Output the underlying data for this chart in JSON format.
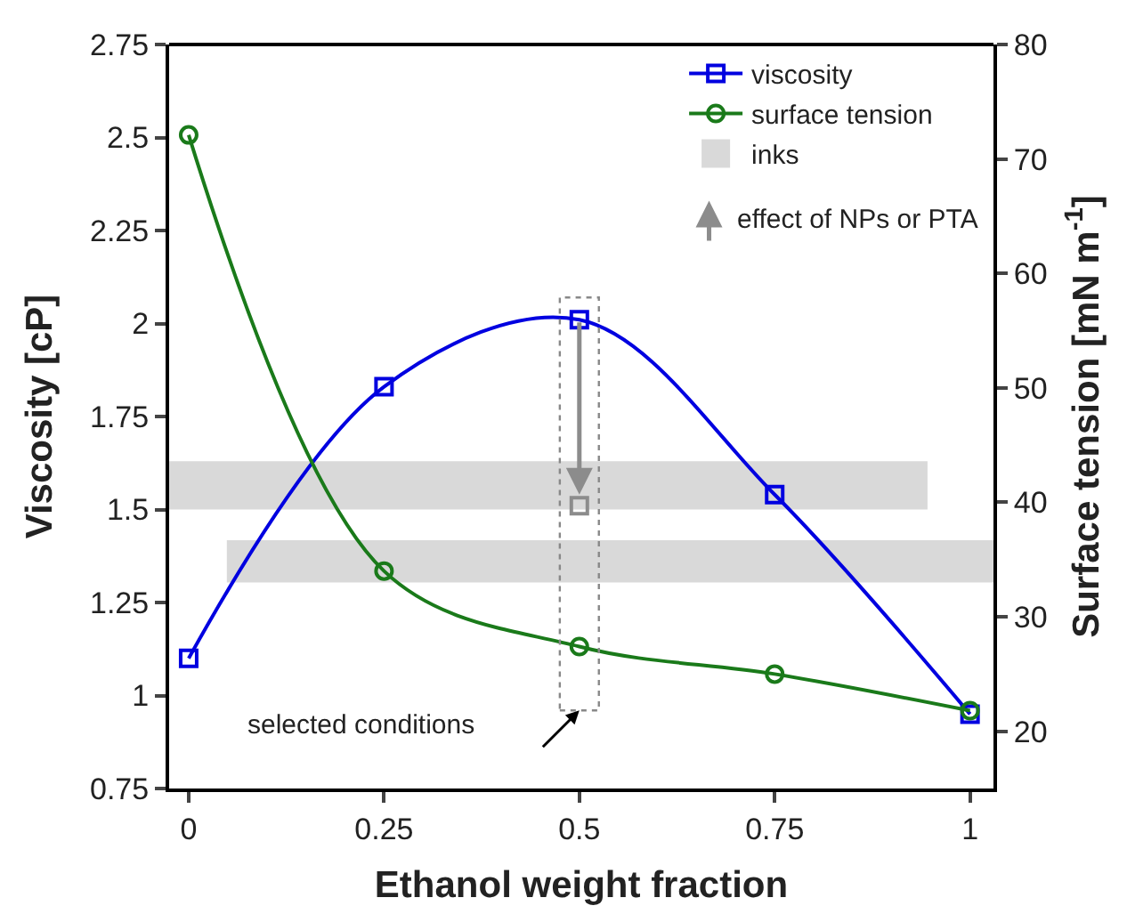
{
  "chart_data": {
    "type": "line",
    "xlabel": "Ethanol weight fraction",
    "ylabel": "Viscosity [cP]",
    "y2label": "Surface tension [mN m$^{-1}$]",
    "x": [
      0,
      0.25,
      0.5,
      0.75,
      1
    ],
    "series": [
      {
        "name": "viscosity",
        "color": "#0000e0",
        "marker": "square",
        "values": [
          1.1,
          1.83,
          2.01,
          1.54,
          0.95
        ]
      },
      {
        "name": "surface tension",
        "color": "#1a7a1a",
        "marker": "circle",
        "axis": "y2",
        "values": [
          72.1,
          34.0,
          27.4,
          25.0,
          21.8
        ]
      },
      {
        "type": "scatter",
        "color": "#8c8c8c",
        "marker": "square",
        "x": [
          0.5
        ],
        "values": [
          1.51
        ]
      }
    ],
    "xlim": [
      -0.025,
      1.03
    ],
    "xticks": [
      0,
      0.25,
      0.5,
      0.75,
      1
    ],
    "ylim": [
      0.75,
      2.75
    ],
    "yticks": [
      0.75,
      1,
      1.25,
      1.5,
      1.75,
      2,
      2.25,
      2.5,
      2.75
    ],
    "y2lim": [
      15,
      80
    ],
    "y2ticks": [
      20,
      30,
      40,
      50,
      60,
      70,
      80
    ],
    "bands": [
      {
        "axis": "y",
        "from": 1.5,
        "to": 1.63,
        "label": "inks",
        "color": "#d9d9d9"
      },
      {
        "axis": "y2",
        "from": 33,
        "to": 36.7,
        "color": "#d9d9d9"
      }
    ],
    "annotations": [
      "effect of NPs or PTA",
      "selected conditions"
    ],
    "legend": "top right",
    "grid": false
  }
}
